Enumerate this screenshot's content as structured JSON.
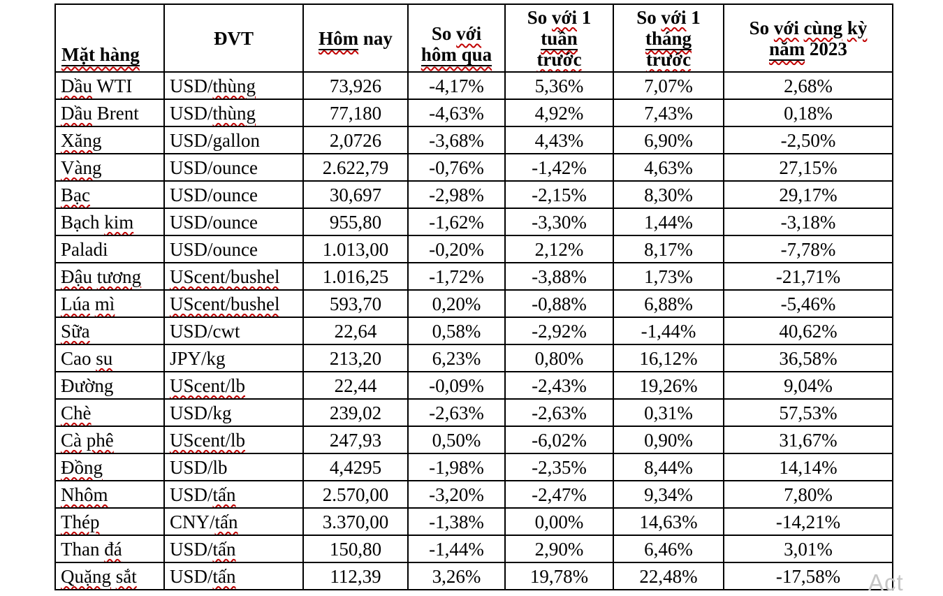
{
  "page": {
    "watermark": "Act",
    "background": "#ffffff"
  },
  "colors": {
    "border": "#000000",
    "squiggle": "#c00000",
    "text": "#000000",
    "watermark": "#c6c6c6"
  },
  "table": {
    "headers": [
      {
        "id": "mat-hang",
        "valign": "bottom",
        "align": "left",
        "lines": [
          [
            {
              "t": "Mặt hàng",
              "u": true,
              "sq": true
            }
          ]
        ]
      },
      {
        "id": "dvt",
        "lines": [
          [
            {
              "t": "ĐVT"
            }
          ]
        ]
      },
      {
        "id": "hom-nay",
        "lines": [
          [
            {
              "t": "Hôm",
              "u": true,
              "sq": true
            },
            {
              "t": " nay"
            }
          ]
        ]
      },
      {
        "id": "so-voi-hom-qua",
        "valign": "bottom",
        "lines": [
          [
            {
              "t": "So "
            },
            {
              "t": "với",
              "sq": true
            }
          ],
          [
            {
              "t": "hôm qua",
              "u": true,
              "sq": true
            }
          ]
        ]
      },
      {
        "id": "so-voi-1-tuan-truoc",
        "lines": [
          [
            {
              "t": "So "
            },
            {
              "t": "với",
              "sq": true
            },
            {
              "t": " 1"
            }
          ],
          [
            {
              "t": "tuần",
              "u": true,
              "sq": true
            }
          ],
          [
            {
              "t": "trước",
              "sq": true
            }
          ]
        ]
      },
      {
        "id": "so-voi-1-thang-truoc",
        "lines": [
          [
            {
              "t": "So "
            },
            {
              "t": "với",
              "sq": true
            },
            {
              "t": " 1"
            }
          ],
          [
            {
              "t": "tháng",
              "u": true,
              "sq": true
            }
          ],
          [
            {
              "t": "trước",
              "sq": true
            }
          ]
        ]
      },
      {
        "id": "so-voi-cung-ky-nam-2023",
        "lines": [
          [
            {
              "t": "So "
            },
            {
              "t": "với",
              "sq": true
            },
            {
              "t": " "
            },
            {
              "t": "cùng",
              "sq": true
            },
            {
              "t": " "
            },
            {
              "t": "kỳ",
              "sq": true
            }
          ],
          [
            {
              "t": "năm",
              "u": true,
              "sq": true
            },
            {
              "t": " 2023"
            }
          ]
        ]
      }
    ],
    "rows": [
      {
        "item": [
          {
            "t": "Dầu",
            "sq": true
          },
          {
            "t": " WTI"
          }
        ],
        "unit": [
          {
            "t": "USD/"
          },
          {
            "t": "thùng",
            "sq": true
          }
        ],
        "today": "73,926",
        "vs_yesterday": "-4,17%",
        "vs_last_week": "5,36%",
        "vs_last_month": "7,07%",
        "vs_2023": "2,68%"
      },
      {
        "item": [
          {
            "t": "Dầu",
            "sq": true
          },
          {
            "t": " Brent"
          }
        ],
        "unit": [
          {
            "t": "USD/"
          },
          {
            "t": "thùng",
            "sq": true
          }
        ],
        "today": "77,180",
        "vs_yesterday": "-4,63%",
        "vs_last_week": "4,92%",
        "vs_last_month": "7,43%",
        "vs_2023": "0,18%"
      },
      {
        "item": [
          {
            "t": "Xăng",
            "sq": true
          }
        ],
        "unit": [
          {
            "t": "USD/gallon"
          }
        ],
        "today": "2,0726",
        "vs_yesterday": "-3,68%",
        "vs_last_week": "4,43%",
        "vs_last_month": "6,90%",
        "vs_2023": "-2,50%"
      },
      {
        "item": [
          {
            "t": "Vàng",
            "sq": true
          }
        ],
        "unit": [
          {
            "t": "USD/ounce"
          }
        ],
        "today": "2.622,79",
        "vs_yesterday": "-0,76%",
        "vs_last_week": "-1,42%",
        "vs_last_month": "4,63%",
        "vs_2023": "27,15%"
      },
      {
        "item": [
          {
            "t": "Bạc",
            "sq": true
          }
        ],
        "unit": [
          {
            "t": "USD/ounce"
          }
        ],
        "today": "30,697",
        "vs_yesterday": "-2,98%",
        "vs_last_week": "-2,15%",
        "vs_last_month": "8,30%",
        "vs_2023": "29,17%"
      },
      {
        "item": [
          {
            "t": "Bạch "
          },
          {
            "t": "kim",
            "sq": true
          }
        ],
        "unit": [
          {
            "t": "USD/ounce"
          }
        ],
        "today": "955,80",
        "vs_yesterday": "-1,62%",
        "vs_last_week": "-3,30%",
        "vs_last_month": "1,44%",
        "vs_2023": "-3,18%"
      },
      {
        "item": [
          {
            "t": "Paladi"
          }
        ],
        "unit": [
          {
            "t": "USD/ounce"
          }
        ],
        "today": "1.013,00",
        "vs_yesterday": "-0,20%",
        "vs_last_week": "2,12%",
        "vs_last_month": "8,17%",
        "vs_2023": "-7,78%"
      },
      {
        "item": [
          {
            "t": "Đậu",
            "sq": true
          },
          {
            "t": " "
          },
          {
            "t": "tương",
            "sq": true
          }
        ],
        "unit": [
          {
            "t": "UScent/bushel",
            "sq": true
          }
        ],
        "today": "1.016,25",
        "vs_yesterday": "-1,72%",
        "vs_last_week": "-3,88%",
        "vs_last_month": "1,73%",
        "vs_2023": "-21,71%"
      },
      {
        "item": [
          {
            "t": "Lúa",
            "sq": true
          },
          {
            "t": " "
          },
          {
            "t": "mì",
            "sq": true
          }
        ],
        "unit": [
          {
            "t": "UScent/bushel",
            "sq": true
          }
        ],
        "today": "593,70",
        "vs_yesterday": "0,20%",
        "vs_last_week": "-0,88%",
        "vs_last_month": "6,88%",
        "vs_2023": "-5,46%"
      },
      {
        "item": [
          {
            "t": "Sữa",
            "sq": true
          }
        ],
        "unit": [
          {
            "t": "USD/cwt"
          }
        ],
        "today": "22,64",
        "vs_yesterday": "0,58%",
        "vs_last_week": "-2,92%",
        "vs_last_month": "-1,44%",
        "vs_2023": "40,62%"
      },
      {
        "item": [
          {
            "t": "Cao "
          },
          {
            "t": "su",
            "sq": true
          }
        ],
        "unit": [
          {
            "t": "JPY/kg"
          }
        ],
        "today": "213,20",
        "vs_yesterday": "6,23%",
        "vs_last_week": "0,80%",
        "vs_last_month": "16,12%",
        "vs_2023": "36,58%"
      },
      {
        "item": [
          {
            "t": "Đường"
          }
        ],
        "unit": [
          {
            "t": "UScent/lb",
            "sq": true
          }
        ],
        "today": "22,44",
        "vs_yesterday": "-0,09%",
        "vs_last_week": "-2,43%",
        "vs_last_month": "19,26%",
        "vs_2023": "9,04%"
      },
      {
        "item": [
          {
            "t": "Chè",
            "sq": true
          }
        ],
        "unit": [
          {
            "t": "USD/kg"
          }
        ],
        "today": "239,02",
        "vs_yesterday": "-2,63%",
        "vs_last_week": "-2,63%",
        "vs_last_month": "0,31%",
        "vs_2023": "57,53%"
      },
      {
        "item": [
          {
            "t": "Cà",
            "sq": true
          },
          {
            "t": " "
          },
          {
            "t": "phê",
            "sq": true
          }
        ],
        "unit": [
          {
            "t": "UScent/lb",
            "sq": true
          }
        ],
        "today": "247,93",
        "vs_yesterday": "0,50%",
        "vs_last_week": "-6,02%",
        "vs_last_month": "0,90%",
        "vs_2023": "31,67%"
      },
      {
        "item": [
          {
            "t": "Đồng",
            "sq": true
          }
        ],
        "unit": [
          {
            "t": "USD/lb"
          }
        ],
        "today": "4,4295",
        "vs_yesterday": "-1,98%",
        "vs_last_week": "-2,35%",
        "vs_last_month": "8,44%",
        "vs_2023": "14,14%"
      },
      {
        "item": [
          {
            "t": "Nhôm",
            "sq": true
          }
        ],
        "unit": [
          {
            "t": "USD/"
          },
          {
            "t": "tấn",
            "sq": true
          }
        ],
        "today": "2.570,00",
        "vs_yesterday": "-3,20%",
        "vs_last_week": "-2,47%",
        "vs_last_month": "9,34%",
        "vs_2023": "7,80%"
      },
      {
        "item": [
          {
            "t": "Thép",
            "sq": true
          }
        ],
        "unit": [
          {
            "t": "CNY/"
          },
          {
            "t": "tấn",
            "sq": true
          }
        ],
        "today": "3.370,00",
        "vs_yesterday": "-1,38%",
        "vs_last_week": "0,00%",
        "vs_last_month": "14,63%",
        "vs_2023": "-14,21%"
      },
      {
        "item": [
          {
            "t": "Than "
          },
          {
            "t": "đá",
            "sq": true
          }
        ],
        "unit": [
          {
            "t": "USD/"
          },
          {
            "t": "tấn",
            "sq": true
          }
        ],
        "today": "150,80",
        "vs_yesterday": "-1,44%",
        "vs_last_week": "2,90%",
        "vs_last_month": "6,46%",
        "vs_2023": "3,01%"
      },
      {
        "item": [
          {
            "t": "Quặng",
            "sq": true
          },
          {
            "t": " "
          },
          {
            "t": "sắt",
            "sq": true
          }
        ],
        "unit": [
          {
            "t": "USD/"
          },
          {
            "t": "tấn",
            "sq": true
          }
        ],
        "today": "112,39",
        "vs_yesterday": "3,26%",
        "vs_last_week": "19,78%",
        "vs_last_month": "22,48%",
        "vs_2023": "-17,58%"
      }
    ]
  }
}
